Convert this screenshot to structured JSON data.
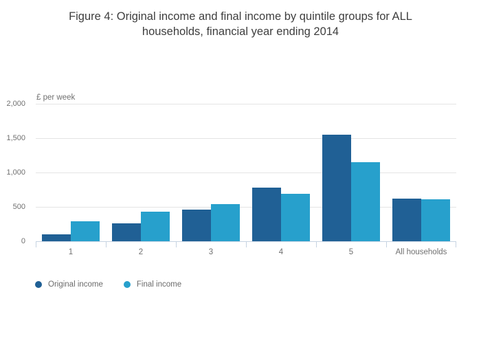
{
  "title": {
    "line1": "Figure 4: Original income and final income by quintile groups for ALL",
    "line2": "households, financial year ending 2014"
  },
  "chart_data": {
    "type": "bar",
    "title": "Figure 4: Original income and final income by quintile groups for ALL households, financial year ending 2014",
    "unit_label": "£ per week",
    "categories": [
      "1",
      "2",
      "3",
      "4",
      "5",
      "All households"
    ],
    "series": [
      {
        "name": "Original income",
        "color": "#206095",
        "values": [
          100,
          258,
          465,
          778,
          1548,
          625
        ]
      },
      {
        "name": "Final income",
        "color": "#27a0cc",
        "values": [
          290,
          435,
          545,
          688,
          1148,
          615
        ]
      }
    ],
    "xlabel": "",
    "ylabel": "£ per week",
    "ylim": [
      0,
      2000
    ],
    "yticks": [
      "0",
      "500",
      "1,000",
      "1,500",
      "2,000"
    ],
    "ytick_values": [
      0,
      500,
      1000,
      1500,
      2000
    ],
    "grid": true,
    "legend_position": "bottom-left"
  },
  "colors": {
    "original_income": "#206095",
    "final_income": "#27a0cc",
    "gridline": "#e4e4e4",
    "axis": "#c6d3e2",
    "label_text": "#707070",
    "title_text": "#3e3e3e",
    "background": "#ffffff"
  }
}
